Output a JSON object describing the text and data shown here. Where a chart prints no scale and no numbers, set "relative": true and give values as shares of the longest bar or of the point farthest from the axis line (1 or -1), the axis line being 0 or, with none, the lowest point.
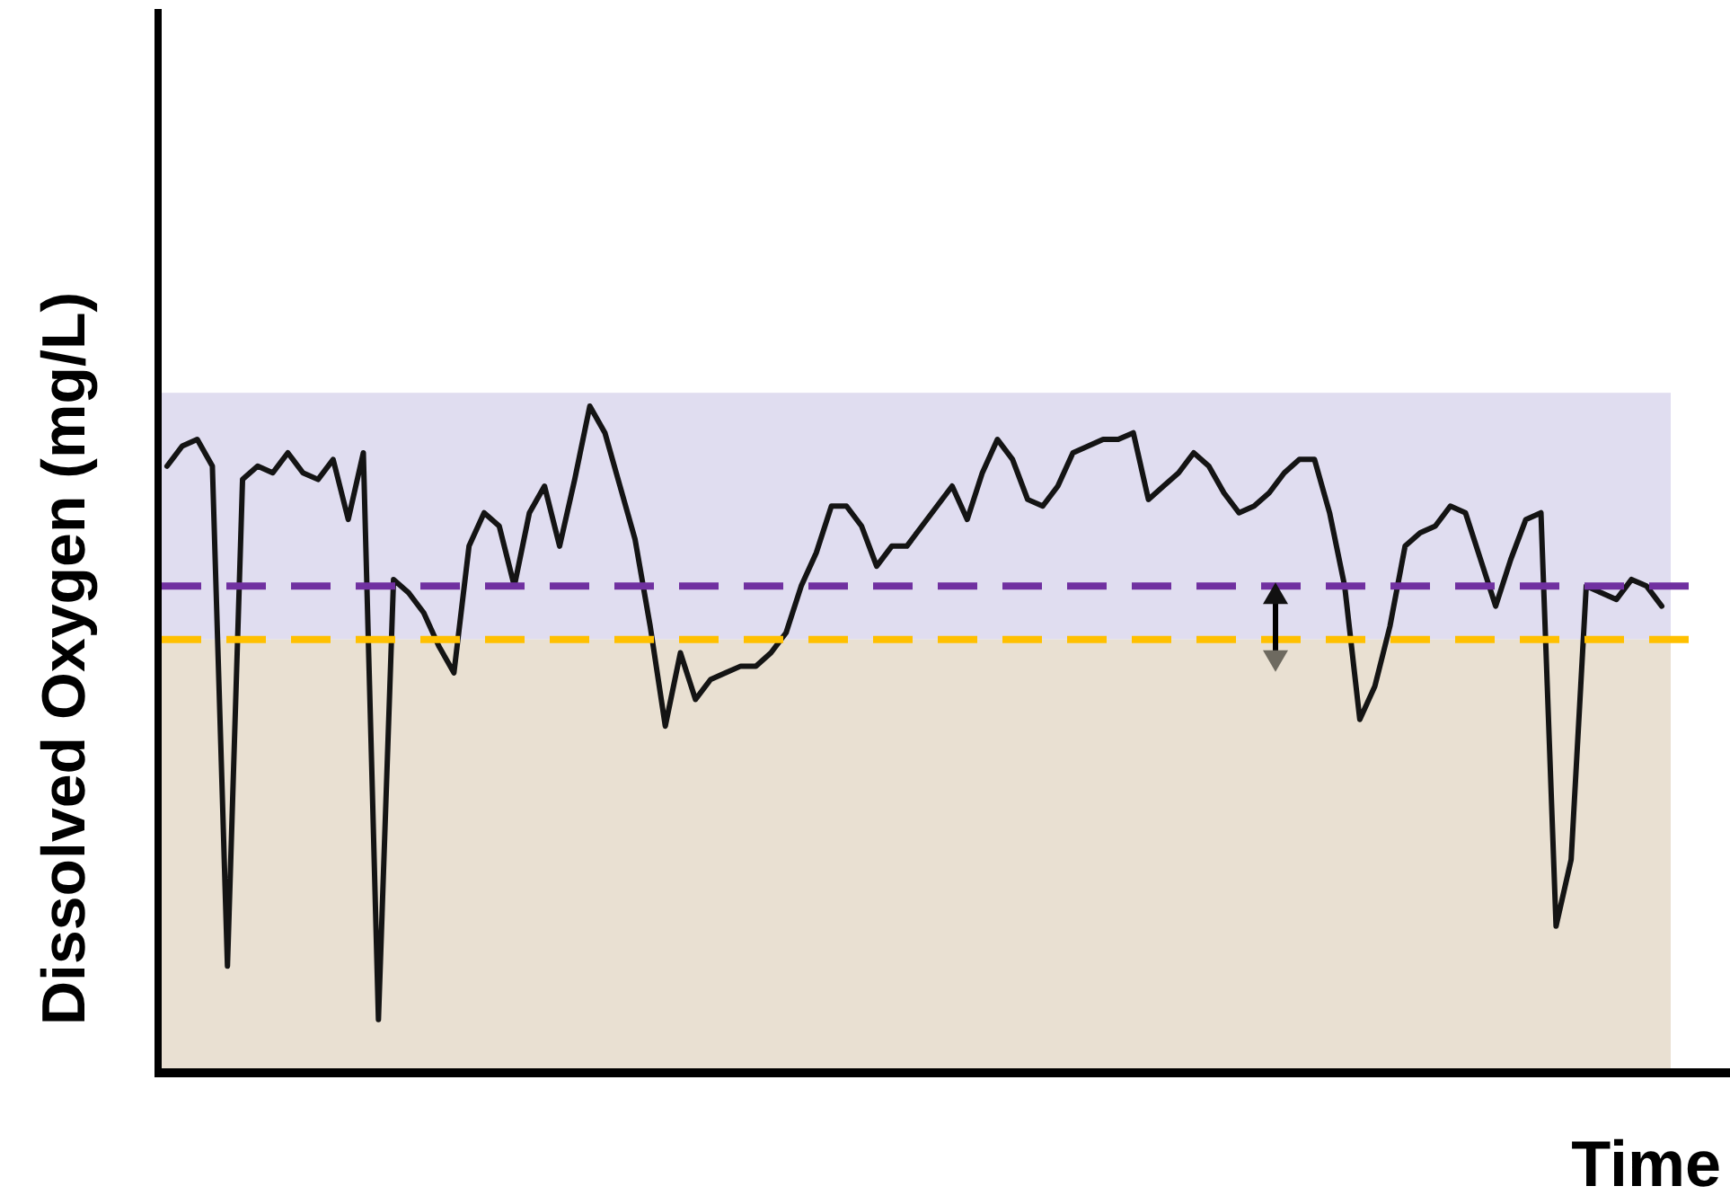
{
  "chart_data": {
    "type": "line",
    "relative": true,
    "xlabel": "Time",
    "ylabel": "Dissolved Oxygen  (mg/L)",
    "line_style": "solid",
    "marker": "none",
    "categories": [
      null,
      null,
      null,
      null,
      null,
      null,
      null,
      null,
      null,
      null,
      null,
      null,
      null,
      null,
      null,
      null,
      null,
      null,
      null,
      null,
      null,
      null,
      null,
      null,
      null,
      null,
      null,
      null,
      null,
      null,
      null,
      null,
      null,
      null,
      null,
      null,
      null,
      null,
      null,
      null,
      null,
      null,
      null,
      null,
      null,
      null,
      null,
      null,
      null,
      null,
      null,
      null,
      null,
      null,
      null,
      null,
      null,
      null,
      null,
      null,
      null,
      null,
      null,
      null,
      null,
      null,
      null,
      null,
      null,
      null,
      null,
      null,
      null,
      null,
      null,
      null,
      null,
      null,
      null,
      null,
      null,
      null,
      null,
      null,
      null,
      null,
      null,
      null,
      null,
      null,
      null,
      null,
      null,
      null,
      null,
      null,
      null,
      null,
      null,
      null
    ],
    "series": [
      {
        "color": "#141414",
        "values": [
          0.91,
          0.94,
          0.95,
          0.91,
          0.16,
          0.89,
          0.91,
          0.9,
          0.93,
          0.9,
          0.89,
          0.92,
          0.83,
          0.93,
          0.08,
          0.74,
          0.72,
          0.69,
          0.64,
          0.6,
          0.79,
          0.84,
          0.82,
          0.73,
          0.84,
          0.88,
          0.79,
          0.89,
          1.0,
          0.96,
          0.88,
          0.8,
          0.67,
          0.52,
          0.63,
          0.56,
          0.59,
          0.6,
          0.61,
          0.61,
          0.63,
          0.66,
          0.73,
          0.78,
          0.85,
          0.85,
          0.82,
          0.76,
          0.79,
          0.79,
          0.82,
          0.85,
          0.88,
          0.83,
          0.9,
          0.95,
          0.92,
          0.86,
          0.85,
          0.88,
          0.93,
          0.94,
          0.95,
          0.95,
          0.96,
          0.86,
          0.88,
          0.9,
          0.93,
          0.91,
          0.87,
          0.84,
          0.85,
          0.87,
          0.9,
          0.92,
          0.92,
          0.84,
          0.73,
          0.53,
          0.58,
          0.67,
          0.79,
          0.81,
          0.82,
          0.85,
          0.84,
          0.77,
          0.7,
          0.77,
          0.83,
          0.84,
          0.22,
          0.32,
          0.73,
          0.72,
          0.71,
          0.74,
          0.73,
          0.7
        ]
      }
    ],
    "bands": [
      {
        "axis": "y",
        "from": 0.65,
        "to": 1.02,
        "color": "#e0ddf0"
      },
      {
        "axis": "y",
        "from": 0,
        "to": 0.65,
        "color": "#e9e0d2"
      }
    ],
    "ref_lines": [
      {
        "axis": "y",
        "value": 0.73,
        "color": "#7030a0",
        "line_style": "dashed"
      },
      {
        "axis": "y",
        "value": 0.65,
        "color": "#ffc000",
        "line_style": "dashed"
      }
    ]
  }
}
